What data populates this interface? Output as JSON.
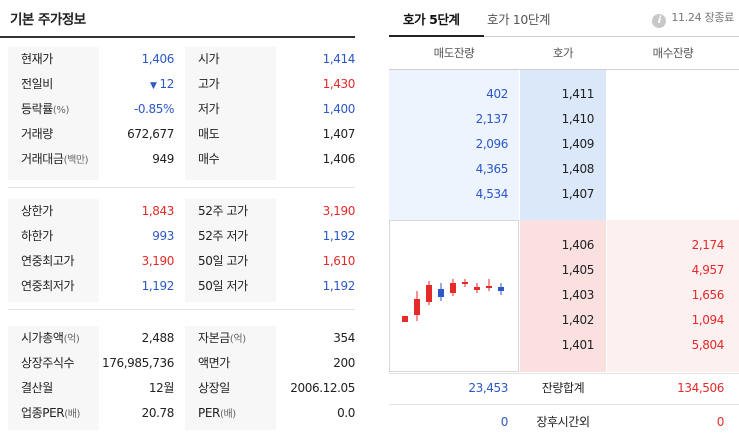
{
  "left_panel": {
    "title": "기본 주가정보",
    "block1": [
      {
        "l1": "현재가",
        "l1_unit": "",
        "v1": "1,406",
        "v1_prefix": "",
        "v1_color": "blue",
        "l2": "시가",
        "l2_unit": "",
        "v2": "1,414",
        "v2_color": "blue"
      },
      {
        "l1": "전일비",
        "l1_unit": "",
        "v1": "12",
        "v1_prefix": "▼",
        "v1_color": "blue",
        "l2": "고가",
        "l2_unit": "",
        "v2": "1,430",
        "v2_color": "red"
      },
      {
        "l1": "등락률",
        "l1_unit": "(%)",
        "v1": "-0.85%",
        "v1_prefix": "",
        "v1_color": "blue",
        "l2": "저가",
        "l2_unit": "",
        "v2": "1,400",
        "v2_color": "blue"
      },
      {
        "l1": "거래량",
        "l1_unit": "",
        "v1": "672,677",
        "v1_prefix": "",
        "v1_color": "default",
        "l2": "매도",
        "l2_unit": "",
        "v2": "1,407",
        "v2_color": "default"
      },
      {
        "l1": "거래대금",
        "l1_unit": "(백만)",
        "v1": "949",
        "v1_prefix": "",
        "v1_color": "default",
        "l2": "매수",
        "l2_unit": "",
        "v2": "1,406",
        "v2_color": "default"
      }
    ],
    "block2": [
      {
        "l1": "상한가",
        "l1_unit": "",
        "v1": "1,843",
        "v1_prefix": "",
        "v1_color": "red",
        "l2": "52주 고가",
        "l2_unit": "",
        "v2": "3,190",
        "v2_color": "red"
      },
      {
        "l1": "하한가",
        "l1_unit": "",
        "v1": "993",
        "v1_prefix": "",
        "v1_color": "blue",
        "l2": "52주 저가",
        "l2_unit": "",
        "v2": "1,192",
        "v2_color": "blue"
      },
      {
        "l1": "연중최고가",
        "l1_unit": "",
        "v1": "3,190",
        "v1_prefix": "",
        "v1_color": "red",
        "l2": "50일 고가",
        "l2_unit": "",
        "v2": "1,610",
        "v2_color": "red"
      },
      {
        "l1": "연중최저가",
        "l1_unit": "",
        "v1": "1,192",
        "v1_prefix": "",
        "v1_color": "blue",
        "l2": "50일 저가",
        "l2_unit": "",
        "v2": "1,192",
        "v2_color": "blue"
      }
    ],
    "block3": [
      {
        "l1": "시가총액",
        "l1_unit": "(억)",
        "v1": "2,488",
        "v1_prefix": "",
        "v1_color": "default",
        "l2": "자본금",
        "l2_unit": "(억)",
        "v2": "354",
        "v2_color": "default"
      },
      {
        "l1": "상장주식수",
        "l1_unit": "",
        "v1": "176,985,736",
        "v1_prefix": "",
        "v1_color": "default",
        "l2": "액면가",
        "l2_unit": "",
        "v2": "200",
        "v2_color": "default"
      },
      {
        "l1": "결산월",
        "l1_unit": "",
        "v1": "12월",
        "v1_prefix": "",
        "v1_color": "default",
        "l2": "상장일",
        "l2_unit": "",
        "v2": "2006.12.05",
        "v2_color": "default"
      },
      {
        "l1": "업종PER",
        "l1_unit": "(배)",
        "v1": "20.78",
        "v1_prefix": "",
        "v1_color": "default",
        "l2": "PER",
        "l2_unit": "(배)",
        "v2": "0.0",
        "v2_color": "default"
      }
    ]
  },
  "right_panel": {
    "tabs": [
      {
        "label": "호가 5단계",
        "active": true
      },
      {
        "label": "호가 10단계",
        "active": false
      }
    ],
    "info_icon_glyph": "i",
    "info_text": "11.24 장종료",
    "headers": {
      "ask_qty": "매도잔량",
      "price": "호가",
      "bid_qty": "매수잔량"
    },
    "asks": [
      {
        "qty": "402",
        "price": "1,411"
      },
      {
        "qty": "2,137",
        "price": "1,410"
      },
      {
        "qty": "2,096",
        "price": "1,409"
      },
      {
        "qty": "4,365",
        "price": "1,408"
      },
      {
        "qty": "4,534",
        "price": "1,407"
      }
    ],
    "bids": [
      {
        "price": "1,406",
        "qty": "2,174"
      },
      {
        "price": "1,405",
        "qty": "4,957"
      },
      {
        "price": "1,403",
        "qty": "1,656"
      },
      {
        "price": "1,402",
        "qty": "1,094"
      },
      {
        "price": "1,401",
        "qty": "5,804"
      }
    ],
    "summary": {
      "ask_total": "23,453",
      "label": "잔량합계",
      "bid_total": "134,506"
    },
    "after_hours": {
      "ask": "0",
      "label": "장후시간외",
      "bid": "0"
    }
  },
  "colors": {
    "blue": "#2c58c7",
    "red": "#e52a2a"
  }
}
